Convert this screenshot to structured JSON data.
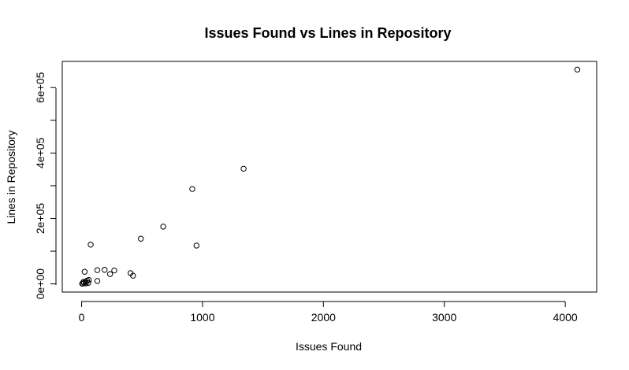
{
  "chart_data": {
    "type": "scatter",
    "title": "Issues Found vs Lines in Repository",
    "xlabel": "Issues Found",
    "ylabel": "Lines in Repository",
    "xlim": [
      -160,
      4260
    ],
    "ylim": [
      -25000,
      680000
    ],
    "x_ticks": [
      0,
      1000,
      2000,
      3000,
      4000
    ],
    "x_tick_labels": [
      "0",
      "1000",
      "2000",
      "3000",
      "4000"
    ],
    "y_ticks": [
      0,
      200000,
      400000,
      600000
    ],
    "y_tick_labels": [
      "0e+00",
      "2e+05",
      "4e+05",
      "6e+05"
    ],
    "y_minor_ticks": [
      100000,
      300000,
      500000
    ],
    "grid": false,
    "points": [
      {
        "x": 4100,
        "y": 655000
      },
      {
        "x": 1340,
        "y": 352000
      },
      {
        "x": 915,
        "y": 290000
      },
      {
        "x": 675,
        "y": 175000
      },
      {
        "x": 490,
        "y": 138000
      },
      {
        "x": 950,
        "y": 117000
      },
      {
        "x": 75,
        "y": 120000
      },
      {
        "x": 130,
        "y": 42000
      },
      {
        "x": 190,
        "y": 43000
      },
      {
        "x": 270,
        "y": 41000
      },
      {
        "x": 235,
        "y": 30000
      },
      {
        "x": 405,
        "y": 33000
      },
      {
        "x": 425,
        "y": 25000
      },
      {
        "x": 25,
        "y": 37000
      },
      {
        "x": 130,
        "y": 9000
      },
      {
        "x": 60,
        "y": 12000
      },
      {
        "x": 45,
        "y": 10000
      },
      {
        "x": 35,
        "y": 6000
      },
      {
        "x": 15,
        "y": 6000
      },
      {
        "x": 20,
        "y": 3000
      },
      {
        "x": 10,
        "y": 1000
      },
      {
        "x": 5,
        "y": 500
      },
      {
        "x": 55,
        "y": 3000
      },
      {
        "x": 35,
        "y": 1500
      }
    ]
  }
}
